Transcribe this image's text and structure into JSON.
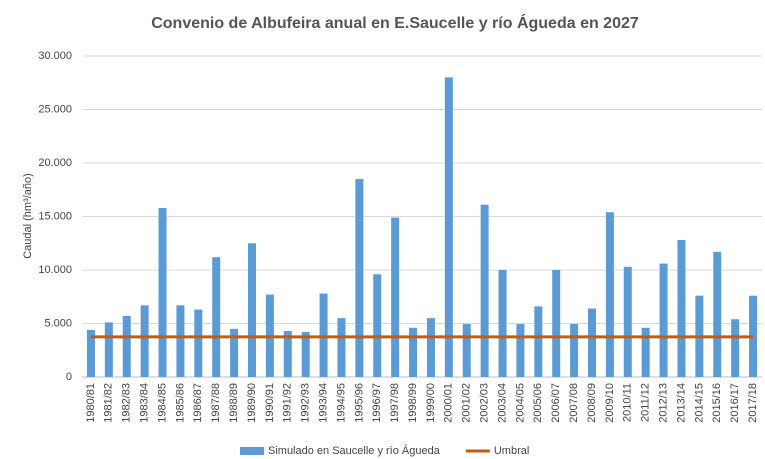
{
  "chart_data": {
    "type": "bar",
    "title": "Convenio de Albufeira anual en E.Saucelle y río Águeda  en 2027",
    "y_label": "Caudal (hm³/año)",
    "categories": [
      "1980/81",
      "1981/82",
      "1982/83",
      "1983/84",
      "1984/85",
      "1985/86",
      "1986/87",
      "1987/88",
      "1988/89",
      "1989/90",
      "1990/91",
      "1991/92",
      "1992/93",
      "1993/94",
      "1994/95",
      "1995/96",
      "1996/97",
      "1997/98",
      "1998/99",
      "1999/00",
      "2000/01",
      "2001/02",
      "2002/03",
      "2003/04",
      "2004/05",
      "2005/06",
      "2006/07",
      "2007/08",
      "2008/09",
      "2009/10",
      "2010/11",
      "2011/12",
      "2012/13",
      "2013/14",
      "2014/15",
      "2015/16",
      "2016/17",
      "2017/18"
    ],
    "series": [
      {
        "name": "Simulado en Saucelle y río Águeda",
        "type": "bar",
        "color": "#5b9bd5",
        "values": [
          4400,
          5100,
          5700,
          6700,
          15800,
          6700,
          6300,
          11200,
          4500,
          12500,
          7700,
          4300,
          4200,
          7800,
          5500,
          18500,
          9600,
          14900,
          4600,
          5500,
          28000,
          4950,
          16100,
          10000,
          4950,
          6600,
          10000,
          4950,
          6400,
          15400,
          10300,
          4600,
          10600,
          12800,
          7600,
          11700,
          5400,
          7600
        ]
      },
      {
        "name": "Umbral",
        "type": "line",
        "color": "#c55a11",
        "values": [
          3750,
          3750,
          3750,
          3750,
          3750,
          3750,
          3750,
          3750,
          3750,
          3750,
          3750,
          3750,
          3750,
          3750,
          3750,
          3750,
          3750,
          3750,
          3750,
          3750,
          3750,
          3750,
          3750,
          3750,
          3750,
          3750,
          3750,
          3750,
          3750,
          3750,
          3750,
          3750,
          3750,
          3750,
          3750,
          3750,
          3750,
          3750
        ]
      }
    ],
    "ylim": [
      0,
      30000
    ],
    "yticks": [
      0,
      {
        "value": 5000,
        "label": "5.000"
      },
      {
        "value": 10000,
        "label": "10.000"
      },
      {
        "value": 15000,
        "label": "15.000"
      },
      {
        "value": 20000,
        "label": "20.000"
      },
      {
        "value": 25000,
        "label": "25.000"
      },
      {
        "value": 30000,
        "label": "30.000"
      }
    ],
    "grid": true,
    "legend": "bottom"
  }
}
